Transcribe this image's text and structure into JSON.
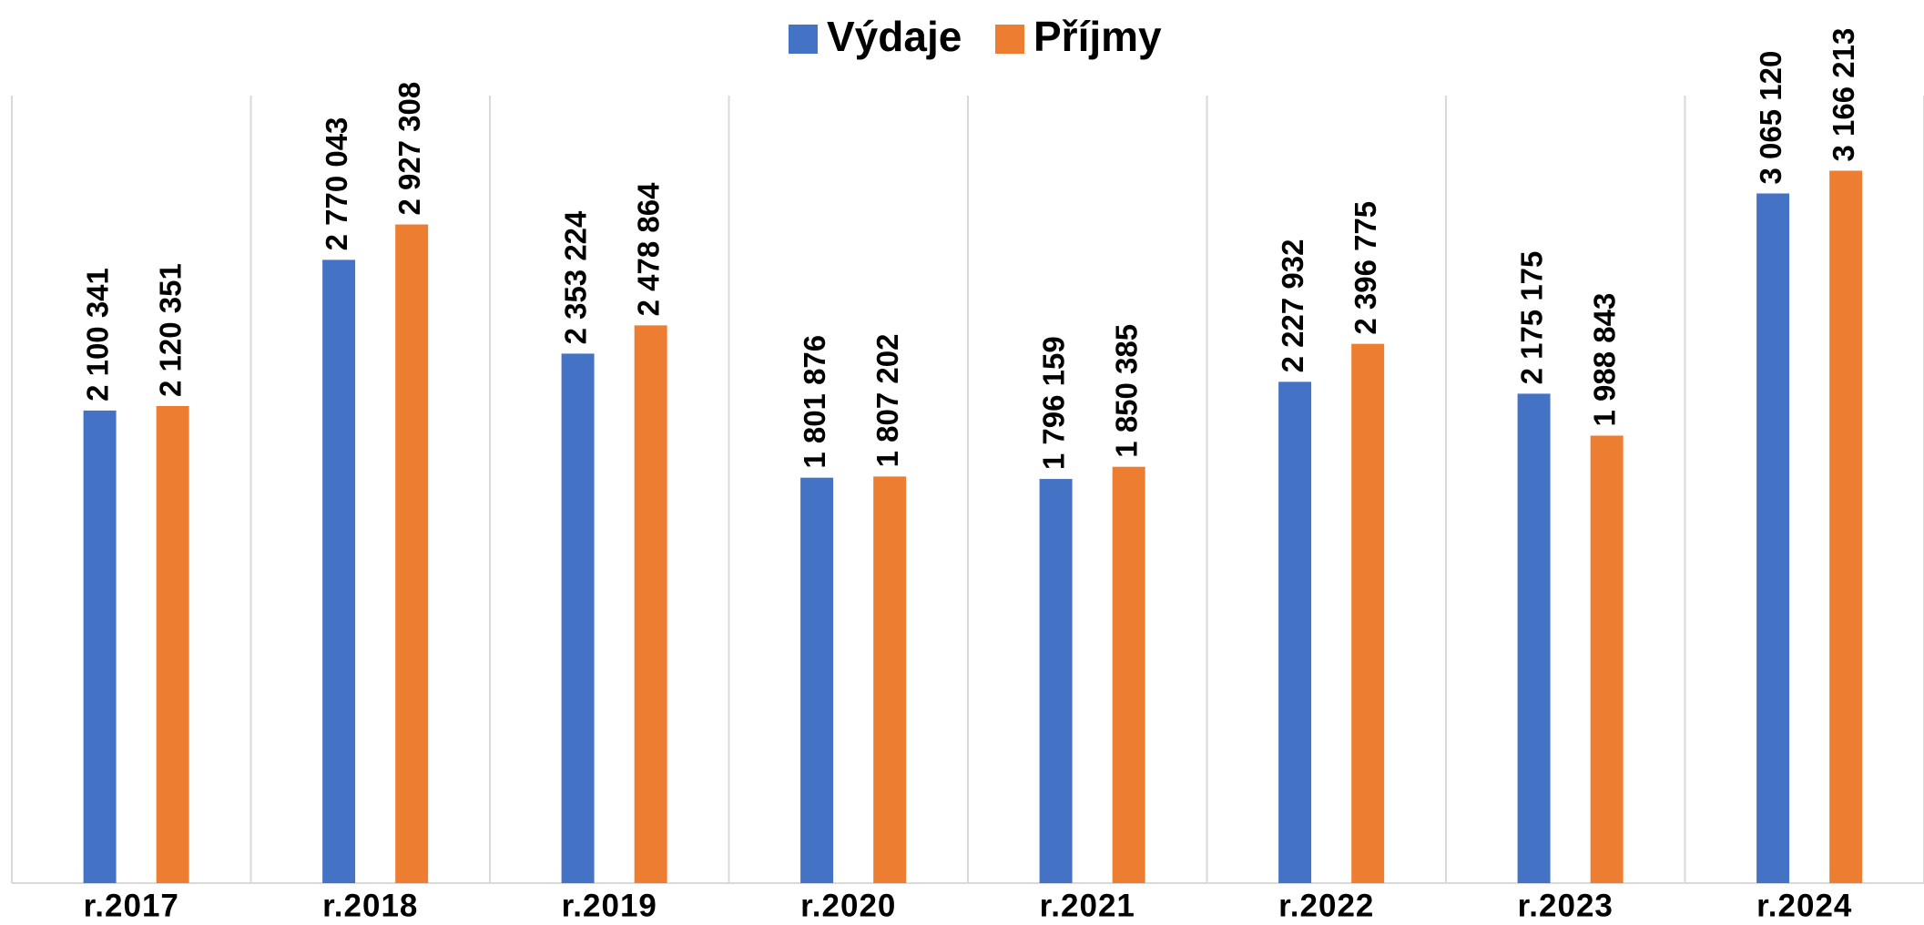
{
  "chart_data": {
    "type": "bar",
    "categories": [
      "r.2017",
      "r.2018",
      "r.2019",
      "r.2020",
      "r.2021",
      "r.2022",
      "r.2023",
      "r.2024"
    ],
    "series": [
      {
        "name": "Výdaje",
        "color": "#4472c4",
        "values": [
          2100341,
          2770043,
          2353224,
          1801876,
          1796159,
          2227932,
          2175175,
          3065120
        ],
        "value_labels": [
          "2 100 341",
          "2 770 043",
          "2 353 224",
          "1 801 876",
          "1 796 159",
          "2 227 932",
          "2 175 175",
          "3 065 120"
        ]
      },
      {
        "name": "Příjmy",
        "color": "#ed7d31",
        "values": [
          2120351,
          2927308,
          2478864,
          1807202,
          1850385,
          2396775,
          1988843,
          3166213
        ],
        "value_labels": [
          "2 120 351",
          "2 927 308",
          "2 478 864",
          "1 807 202",
          "1 850 385",
          "2 396 775",
          "1 988 843",
          "3 166 213"
        ]
      }
    ],
    "ylim": [
      0,
      3500000
    ],
    "grid": true,
    "legend": "top"
  }
}
